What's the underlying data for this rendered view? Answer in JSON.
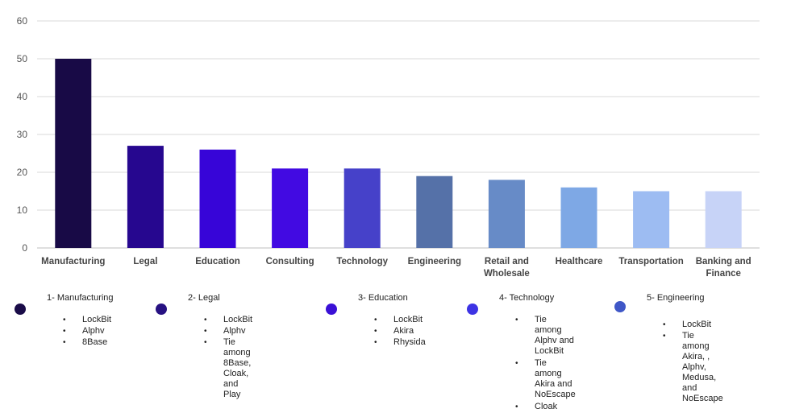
{
  "chart_data": {
    "type": "bar",
    "categories": [
      "Manufacturing",
      "Legal",
      "Education",
      "Consulting",
      "Technology",
      "Engineering",
      "Retail and Wholesale",
      "Healthcare",
      "Transportation",
      "Banking and Finance"
    ],
    "category_lines": [
      [
        "Manufacturing"
      ],
      [
        "Legal"
      ],
      [
        "Education"
      ],
      [
        "Consulting"
      ],
      [
        "Technology"
      ],
      [
        "Engineering"
      ],
      [
        "Retail and",
        "Wholesale"
      ],
      [
        "Healthcare"
      ],
      [
        "Transportation"
      ],
      [
        "Banking and",
        "Finance"
      ]
    ],
    "values": [
      50,
      27,
      26,
      21,
      21,
      19,
      18,
      16,
      15,
      15
    ],
    "colors": [
      "#180a46",
      "#26078f",
      "#3705d8",
      "#420ae2",
      "#4641c9",
      "#5571a8",
      "#678bc7",
      "#7ea8e5",
      "#9dbcf2",
      "#c7d3f7"
    ],
    "ylim": [
      0,
      60
    ],
    "yticks": [
      0,
      10,
      20,
      30,
      40,
      50,
      60
    ],
    "grid": true,
    "title": "",
    "xlabel": "",
    "ylabel": ""
  },
  "legend": [
    {
      "title": "1- Manufacturing",
      "color": "#1a0c48",
      "items": [
        "LockBit",
        "Alphv",
        "8Base"
      ]
    },
    {
      "title": "2- Legal",
      "color": "#271182",
      "items": [
        "LockBit",
        "Alphv",
        "Tie among 8Base, Cloak,\nand Play"
      ]
    },
    {
      "title": "3- Education",
      "color": "#3a10d6",
      "items": [
        "LockBit",
        "Akira",
        "Rhysida"
      ]
    },
    {
      "title": "4- Technology",
      "color": "#3d33e4",
      "items": [
        "Tie among Alphv and\nLockBit",
        "Tie among Akira and\nNoEscape",
        "Cloak"
      ]
    },
    {
      "title": "5- Engineering",
      "color": "#3f57c7",
      "items": [
        "LockBit",
        "Tie among Akira, ,\nAlphv, Medusa, and\nNoEscape"
      ]
    }
  ]
}
